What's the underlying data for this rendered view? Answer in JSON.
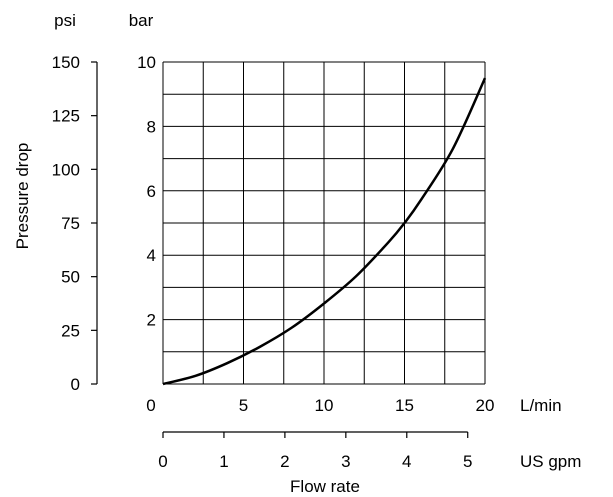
{
  "chart_data": {
    "type": "line",
    "title": "",
    "ylabel": "Pressure drop",
    "xlabel": "Flow rate",
    "y_primary": {
      "unit": "bar",
      "range": [
        0,
        10
      ],
      "ticks": [
        2,
        4,
        6,
        8,
        10
      ]
    },
    "y_secondary": {
      "unit": "psi",
      "range": [
        0,
        150
      ],
      "ticks": [
        0,
        25,
        50,
        75,
        100,
        125,
        150
      ]
    },
    "x_primary": {
      "unit": "L/min",
      "range": [
        0,
        20
      ],
      "ticks": [
        0,
        5,
        10,
        15,
        20
      ]
    },
    "x_secondary": {
      "unit": "US gpm",
      "ticks": [
        0,
        1,
        2,
        3,
        4,
        5
      ]
    },
    "grid": true,
    "series": [
      {
        "x": [
          0,
          2,
          4,
          6,
          8,
          10,
          12,
          14,
          15,
          16,
          18,
          20
        ],
        "y": [
          0,
          0.25,
          0.65,
          1.15,
          1.75,
          2.5,
          3.35,
          4.4,
          5.0,
          5.7,
          7.3,
          9.5
        ]
      }
    ]
  }
}
